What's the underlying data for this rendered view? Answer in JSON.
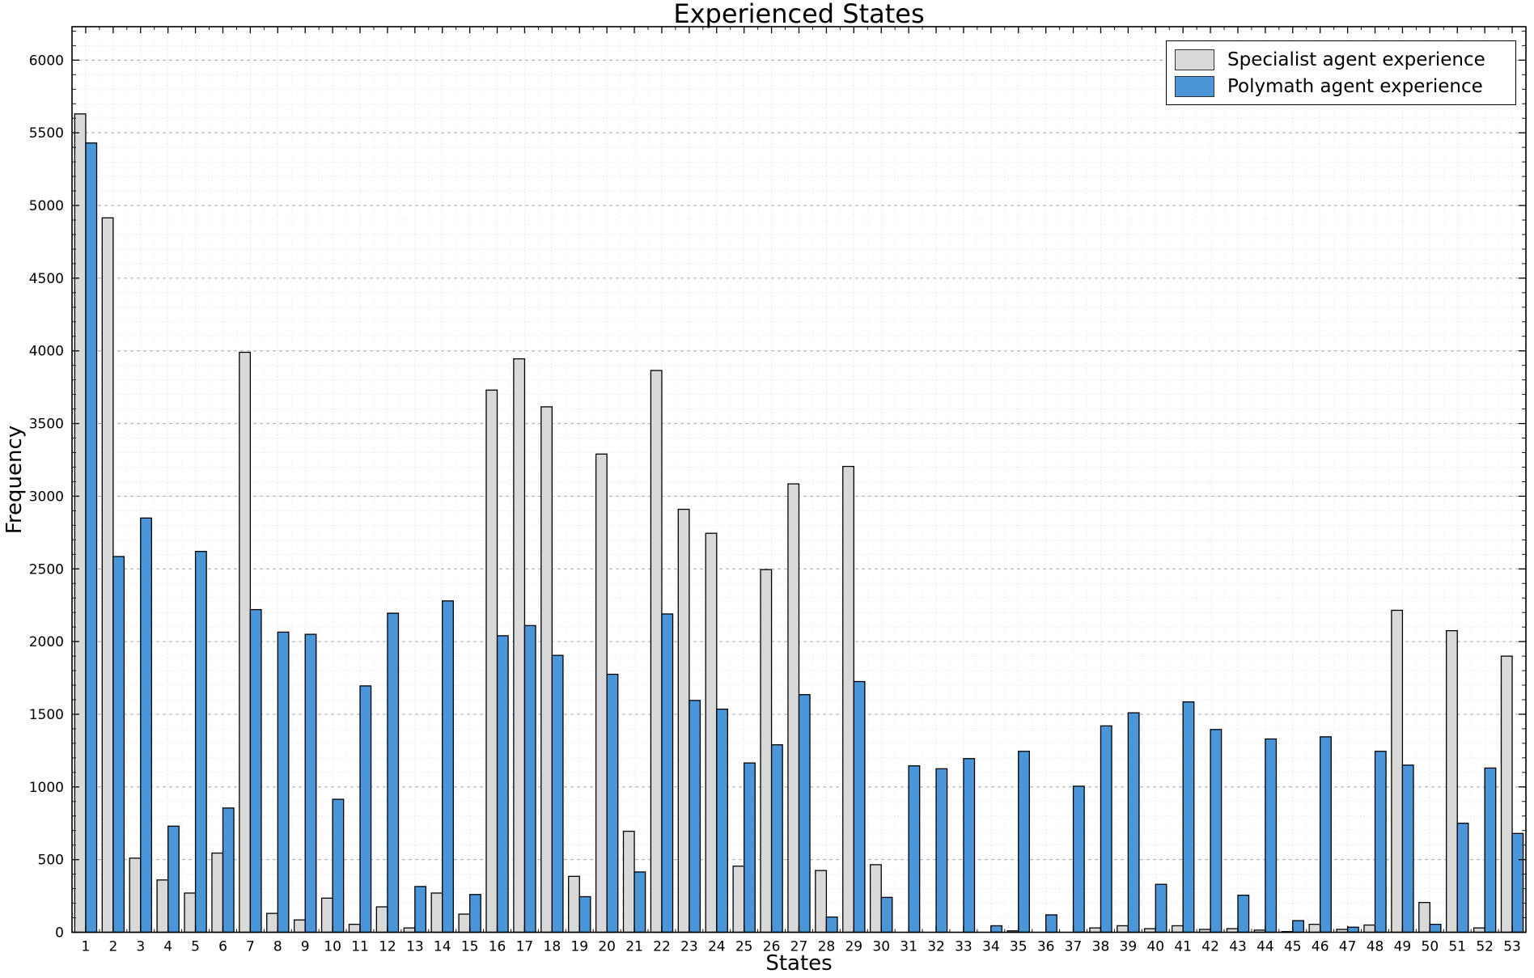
{
  "title": "Experienced States",
  "axis": {
    "xlabel": "States",
    "ylabel": "Frequency",
    "yticks": [
      0,
      500,
      1000,
      1500,
      2000,
      2500,
      3000,
      3500,
      4000,
      4500,
      5000,
      5500,
      6000
    ],
    "ylim": [
      0,
      6230
    ],
    "minor_y_step": 100
  },
  "legend": {
    "position": "upper right",
    "entries": [
      {
        "label": "Specialist agent experience",
        "color": "#d9d9d9"
      },
      {
        "label": "Polymath agent experience",
        "color": "#4a96d8"
      }
    ]
  },
  "colors": {
    "specialist_fill": "#d9d9d9",
    "polymath_fill": "#4a96d8",
    "bar_edge": "#000000",
    "grid_major": "#9a9a9a",
    "grid_minor": "#c9c9c9",
    "spine": "#000000",
    "background": "#ffffff"
  },
  "chart_data": {
    "type": "bar",
    "title": "Experienced States",
    "xlabel": "States",
    "ylabel": "Frequency",
    "categories": [
      "1",
      "2",
      "3",
      "4",
      "5",
      "6",
      "7",
      "8",
      "9",
      "10",
      "11",
      "12",
      "13",
      "14",
      "15",
      "16",
      "17",
      "18",
      "19",
      "20",
      "21",
      "22",
      "23",
      "24",
      "25",
      "26",
      "27",
      "28",
      "29",
      "30",
      "31",
      "32",
      "33",
      "34",
      "35",
      "36",
      "37",
      "38",
      "39",
      "40",
      "41",
      "42",
      "43",
      "44",
      "45",
      "46",
      "47",
      "48",
      "49",
      "50",
      "51",
      "52",
      "53"
    ],
    "series": [
      {
        "name": "Specialist agent experience",
        "color": "#d9d9d9",
        "values": [
          5630,
          4915,
          510,
          360,
          270,
          545,
          3990,
          130,
          85,
          235,
          55,
          175,
          30,
          270,
          125,
          3730,
          3945,
          3615,
          385,
          3290,
          695,
          3865,
          2910,
          2745,
          455,
          2495,
          3085,
          425,
          3205,
          465,
          0,
          0,
          0,
          0,
          10,
          0,
          0,
          30,
          45,
          25,
          45,
          20,
          25,
          15,
          5,
          55,
          20,
          50,
          2215,
          205,
          2075,
          30,
          1900
        ]
      },
      {
        "name": "Polymath agent experience",
        "color": "#4a96d8",
        "values": [
          5430,
          2585,
          2850,
          730,
          2620,
          855,
          2220,
          2065,
          2050,
          915,
          1695,
          2195,
          315,
          2280,
          260,
          2040,
          2110,
          1905,
          245,
          1775,
          415,
          2190,
          1595,
          1535,
          1165,
          1290,
          1635,
          105,
          1725,
          240,
          1145,
          1125,
          1195,
          45,
          1245,
          120,
          1005,
          1420,
          1510,
          330,
          1585,
          1395,
          255,
          1330,
          80,
          1345,
          35,
          1245,
          1150,
          55,
          750,
          1130,
          680
        ]
      }
    ],
    "ylim": [
      0,
      6230
    ],
    "ytick_interval": 500,
    "grid": true,
    "legend_position": "upper right"
  }
}
